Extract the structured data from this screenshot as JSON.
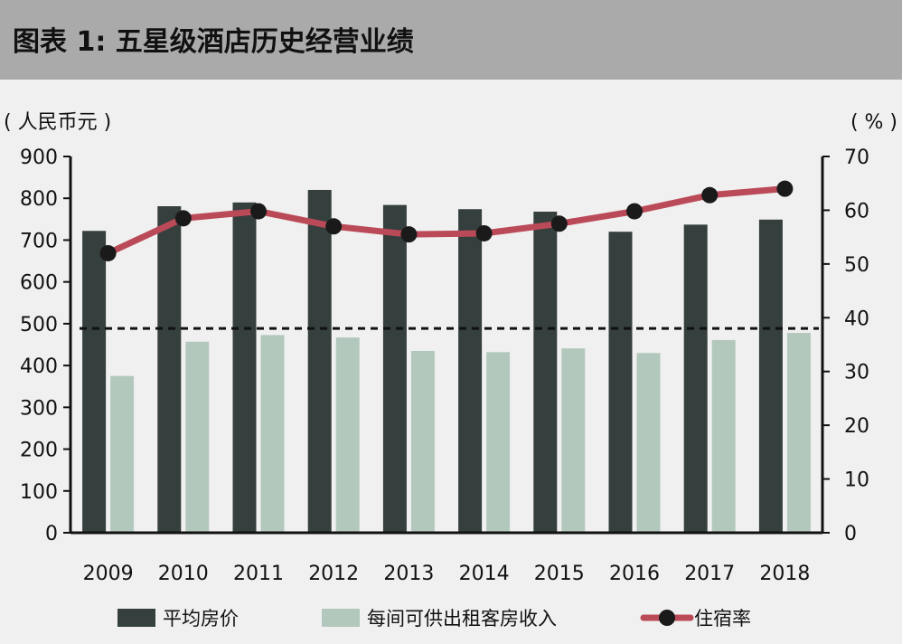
{
  "header": {
    "title": "图表 1: 五星级酒店历史经营业绩"
  },
  "chart_data": {
    "type": "bar",
    "categories": [
      "2009",
      "2010",
      "2011",
      "2012",
      "2013",
      "2014",
      "2015",
      "2016",
      "2017",
      "2018"
    ],
    "left_unit": "( 人民币元 )",
    "right_unit": "( % )",
    "left_ylim": [
      0,
      900
    ],
    "left_ticks": [
      "0",
      "100",
      "200",
      "300",
      "400",
      "500",
      "600",
      "700",
      "800",
      "900"
    ],
    "right_ylim": [
      0,
      70
    ],
    "right_ticks": [
      "0",
      "10",
      "20",
      "30",
      "40",
      "50",
      "60",
      "70"
    ],
    "series": [
      {
        "name": "平均房价",
        "type": "bar",
        "axis": "left",
        "color": "#353f3d",
        "values": [
          722,
          781,
          790,
          820,
          784,
          774,
          768,
          720,
          737,
          749
        ]
      },
      {
        "name": "每间可供出租客房收入",
        "type": "bar",
        "axis": "left",
        "color": "#b3c8bd",
        "values": [
          375,
          457,
          473,
          467,
          435,
          432,
          441,
          430,
          461,
          478
        ]
      },
      {
        "name": "住宿率",
        "type": "line",
        "axis": "right",
        "color": "#bb4a58",
        "marker_color": "#1a1a1a",
        "values": [
          52.0,
          58.5,
          59.8,
          57.0,
          55.5,
          55.7,
          57.5,
          59.8,
          62.8,
          64.0
        ]
      }
    ],
    "reference_line": {
      "axis": "right",
      "value": 38,
      "style": "dashed",
      "color": "#111111"
    },
    "grid": false,
    "legend": "bottom"
  }
}
